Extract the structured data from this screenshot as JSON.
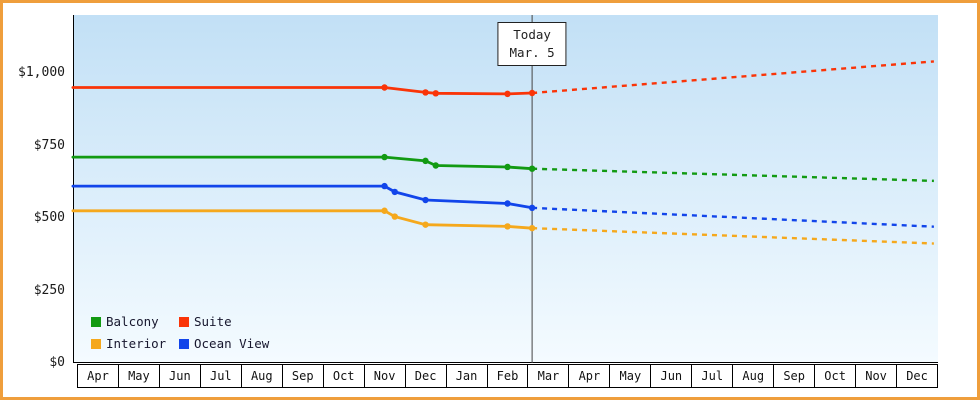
{
  "frame": {
    "border_color": "#ef9e3c"
  },
  "chart_data": {
    "type": "line",
    "title": "",
    "xlabel": "",
    "ylabel": "",
    "y_axis": {
      "ticks": [
        {
          "value": 0,
          "label": "$0"
        },
        {
          "value": 250,
          "label": "$250"
        },
        {
          "value": 500,
          "label": "$500"
        },
        {
          "value": 750,
          "label": "$750"
        },
        {
          "value": 1000,
          "label": "$1,000"
        }
      ],
      "range": [
        0,
        1200
      ]
    },
    "x_axis": {
      "month_labels": [
        "Apr",
        "May",
        "Jun",
        "Jul",
        "Aug",
        "Sep",
        "Oct",
        "Nov",
        "Dec",
        "Jan",
        "Feb",
        "Mar",
        "Apr",
        "May",
        "Jun",
        "Jul",
        "Aug",
        "Sep",
        "Oct",
        "Nov",
        "Dec"
      ]
    },
    "today": {
      "label_line1": "Today",
      "label_line2": "Mar. 5",
      "month_index": 11,
      "month_fraction": 0.1
    },
    "plot_background": {
      "top": "#c2e0f6",
      "bottom": "#f4fbff"
    },
    "series": [
      {
        "name": "Balcony",
        "color": "#129a12",
        "solid": [
          [
            -0.6,
            710
          ],
          [
            7,
            710
          ],
          [
            8,
            697
          ],
          [
            8.25,
            681
          ],
          [
            10,
            676
          ],
          [
            10.6,
            670
          ]
        ],
        "dashed_end": [
          20.4,
          628
        ]
      },
      {
        "name": "Suite",
        "color": "#fa3408",
        "solid": [
          [
            -0.6,
            950
          ],
          [
            7,
            950
          ],
          [
            8,
            933
          ],
          [
            8.25,
            930
          ],
          [
            10,
            928
          ],
          [
            10.6,
            931
          ]
        ],
        "dashed_end": [
          20.4,
          1040
        ]
      },
      {
        "name": "Interior",
        "color": "#f5a81c",
        "solid": [
          [
            -0.6,
            525
          ],
          [
            7,
            525
          ],
          [
            7.25,
            505
          ],
          [
            8,
            477
          ],
          [
            10,
            471
          ],
          [
            10.6,
            465
          ]
        ],
        "dashed_end": [
          20.4,
          412
        ]
      },
      {
        "name": "Ocean View",
        "color": "#1245ea",
        "solid": [
          [
            -0.6,
            610
          ],
          [
            7,
            610
          ],
          [
            7.25,
            590
          ],
          [
            8,
            562
          ],
          [
            10,
            550
          ],
          [
            10.6,
            535
          ]
        ],
        "dashed_end": [
          20.4,
          470
        ]
      }
    ],
    "legend": {
      "rows": [
        [
          "Balcony",
          "Suite"
        ],
        [
          "Interior",
          "Ocean View"
        ]
      ],
      "position": "bottom-left"
    },
    "grid": false
  }
}
